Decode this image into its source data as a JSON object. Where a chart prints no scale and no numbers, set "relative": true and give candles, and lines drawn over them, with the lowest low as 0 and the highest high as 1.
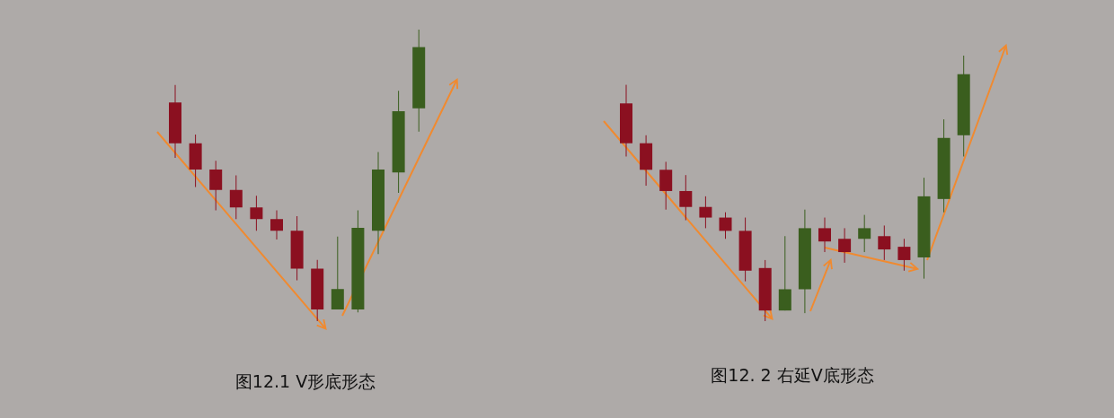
{
  "chart_data": [
    {
      "type": "candlestick",
      "relative": true,
      "annotations": [
        "图12.1 V形底形态"
      ],
      "categories": [
        null,
        null,
        null,
        null,
        null,
        null,
        null,
        null,
        null,
        null,
        null,
        null,
        null
      ],
      "ohlc": [
        [
          0.75,
          0.81,
          0.56,
          0.61
        ],
        [
          0.61,
          0.64,
          0.46,
          0.52
        ],
        [
          0.52,
          0.55,
          0.38,
          0.45
        ],
        [
          0.45,
          0.5,
          0.35,
          0.39
        ],
        [
          0.39,
          0.43,
          0.31,
          0.35
        ],
        [
          0.35,
          0.38,
          0.28,
          0.31
        ],
        [
          0.31,
          0.36,
          0.14,
          0.18
        ],
        [
          0.18,
          0.21,
          0,
          0.04
        ],
        [
          0.04,
          0.29,
          0.04,
          0.11
        ],
        [
          0.04,
          0.38,
          0.03,
          0.32
        ],
        [
          0.31,
          0.58,
          0.23,
          0.52
        ],
        [
          0.51,
          0.79,
          0.44,
          0.72
        ],
        [
          0.73,
          1,
          0.65,
          0.94
        ]
      ],
      "colors": [
        "#8b1020",
        "#8b1020",
        "#8b1020",
        "#8b1020",
        "#8b1020",
        "#8b1020",
        "#8b1020",
        "#8b1020",
        "#3a5e1e",
        "#3a5e1e",
        "#3a5e1e",
        "#3a5e1e",
        "#3a5e1e"
      ]
    },
    {
      "type": "candlestick",
      "relative": true,
      "annotations": [
        "图12. 2 右延V底形态"
      ],
      "categories": [
        null,
        null,
        null,
        null,
        null,
        null,
        null,
        null,
        null,
        null,
        null,
        null,
        null,
        null,
        null,
        null,
        null,
        null
      ],
      "ohlc": [
        [
          0.82,
          0.89,
          0.62,
          0.67
        ],
        [
          0.67,
          0.7,
          0.51,
          0.57
        ],
        [
          0.57,
          0.6,
          0.42,
          0.49
        ],
        [
          0.49,
          0.55,
          0.38,
          0.43
        ],
        [
          0.43,
          0.47,
          0.35,
          0.39
        ],
        [
          0.39,
          0.41,
          0.31,
          0.34
        ],
        [
          0.34,
          0.39,
          0.15,
          0.19
        ],
        [
          0.2,
          0.23,
          0,
          0.04
        ],
        [
          0.04,
          0.32,
          0.04,
          0.12
        ],
        [
          0.12,
          0.42,
          0.03,
          0.35
        ],
        [
          0.35,
          0.39,
          0.26,
          0.3
        ],
        [
          0.31,
          0.35,
          0.22,
          0.26
        ],
        [
          0.31,
          0.4,
          0.26,
          0.35
        ],
        [
          0.32,
          0.36,
          0.23,
          0.27
        ],
        [
          0.28,
          0.31,
          0.19,
          0.23
        ],
        [
          0.24,
          0.54,
          0.16,
          0.47
        ],
        [
          0.46,
          0.76,
          0.41,
          0.69
        ],
        [
          0.7,
          1,
          0.62,
          0.93
        ]
      ],
      "colors": [
        "#8b1020",
        "#8b1020",
        "#8b1020",
        "#8b1020",
        "#8b1020",
        "#8b1020",
        "#8b1020",
        "#8b1020",
        "#3a5e1e",
        "#3a5e1e",
        "#8b1020",
        "#8b1020",
        "#3a5e1e",
        "#8b1020",
        "#8b1020",
        "#3a5e1e",
        "#3a5e1e",
        "#3a5e1e"
      ]
    }
  ]
}
